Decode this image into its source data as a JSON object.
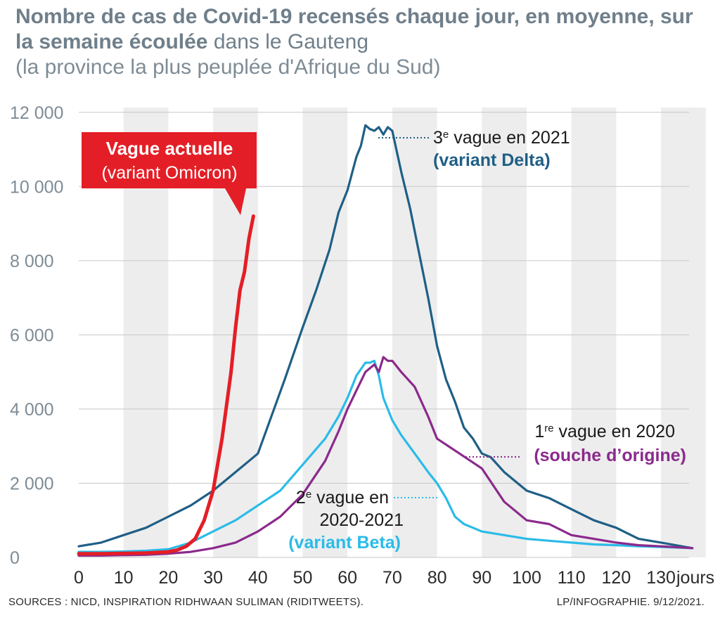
{
  "title": {
    "bold": "Nombre de cas de Covid-19 recensés chaque jour, en moyenne, sur la semaine écoulée",
    "rest": "dans le Gauteng",
    "subtitle": "(la province la plus peuplée d'Afrique du Sud)"
  },
  "footer": {
    "sources": "SOURCES : NICD, INSPIRATION RIDHWAAN SULIMAN (RIDITWEETS).",
    "credit": "LP/INFOGRAPHIE.  9/12/2021."
  },
  "colors": {
    "omicron": "#e41e26",
    "delta": "#1f5f86",
    "beta": "#2bbbe8",
    "origin": "#8b2a8c",
    "grid": "#c7c7c7",
    "band": "#ededed",
    "axis_text": "#7e8c96"
  },
  "annotations": {
    "omicron_line1": "Vague actuelle",
    "omicron_line2": "(variant Omicron)",
    "delta_ord": "3",
    "delta_sup": "e",
    "delta_line1": " vague en 2021",
    "delta_line2": "(variant Delta)",
    "origin_ord": "1",
    "origin_sup": "re",
    "origin_line1": " vague en 2020",
    "origin_line2": "(souche d’origine)",
    "beta_ord": "2",
    "beta_sup": "e",
    "beta_line1": " vague en",
    "beta_line2": "2020-2021",
    "beta_line3": "(variant Beta)"
  },
  "chart_data": {
    "type": "line",
    "x_unit": "jours",
    "xlim": [
      0,
      137
    ],
    "ylim": [
      0,
      12000
    ],
    "x_ticks": [
      0,
      10,
      20,
      30,
      40,
      50,
      60,
      70,
      80,
      90,
      100,
      110,
      120,
      130
    ],
    "x_tick_labels": [
      "0",
      "10",
      "20",
      "30",
      "40",
      "50",
      "60",
      "70",
      "80",
      "90",
      "100",
      "110",
      "120",
      "130"
    ],
    "x_last_label": "jours",
    "y_ticks": [
      0,
      2000,
      4000,
      6000,
      8000,
      10000,
      12000
    ],
    "y_tick_labels": [
      "0",
      "2 000",
      "4 000",
      "6 000",
      "8 000",
      "10 000",
      "12 000"
    ],
    "grid": "horizontal",
    "series": [
      {
        "name": "Vague actuelle (variant Omicron)",
        "x": [
          0,
          5,
          10,
          15,
          20,
          22,
          24,
          26,
          28,
          30,
          32,
          34,
          35,
          36,
          37,
          38,
          39
        ],
        "y": [
          100,
          100,
          110,
          120,
          150,
          200,
          300,
          500,
          1000,
          1800,
          3200,
          5000,
          6200,
          7200,
          7700,
          8600,
          9200
        ]
      },
      {
        "name": "3e vague en 2021 (variant Delta)",
        "x": [
          0,
          5,
          10,
          15,
          20,
          25,
          30,
          35,
          38,
          40,
          43,
          46,
          50,
          53,
          56,
          58,
          60,
          62,
          63,
          64,
          65,
          66,
          67,
          68,
          69,
          70,
          72,
          74,
          76,
          78,
          80,
          82,
          84,
          86,
          88,
          90,
          92,
          95,
          100,
          105,
          110,
          115,
          120,
          125,
          130,
          137
        ],
        "y": [
          300,
          400,
          600,
          800,
          1100,
          1400,
          1800,
          2300,
          2600,
          2800,
          3800,
          4800,
          6200,
          7200,
          8300,
          9300,
          9900,
          10800,
          11100,
          11650,
          11550,
          11500,
          11600,
          11400,
          11600,
          11500,
          10400,
          9400,
          8200,
          7000,
          5700,
          4800,
          4200,
          3500,
          3200,
          2800,
          2700,
          2300,
          1800,
          1600,
          1300,
          1000,
          800,
          500,
          400,
          250
        ]
      },
      {
        "name": "2e vague en 2020-2021 (variant Beta)",
        "x": [
          0,
          5,
          10,
          15,
          20,
          25,
          30,
          35,
          40,
          45,
          50,
          55,
          58,
          60,
          62,
          64,
          65,
          66,
          67,
          68,
          70,
          72,
          75,
          78,
          80,
          82,
          84,
          86,
          88,
          90,
          95,
          100,
          105,
          110,
          115,
          120,
          125,
          130,
          137
        ],
        "y": [
          150,
          150,
          160,
          180,
          220,
          400,
          700,
          1000,
          1400,
          1800,
          2500,
          3200,
          3800,
          4300,
          4900,
          5250,
          5250,
          5300,
          4900,
          4300,
          3700,
          3300,
          2800,
          2300,
          2000,
          1600,
          1100,
          900,
          800,
          700,
          600,
          500,
          450,
          400,
          350,
          330,
          300,
          280,
          250
        ]
      },
      {
        "name": "1re vague en 2020 (souche d'origine)",
        "x": [
          0,
          5,
          10,
          15,
          20,
          25,
          30,
          35,
          40,
          45,
          50,
          55,
          58,
          60,
          62,
          64,
          66,
          67,
          68,
          69,
          70,
          72,
          75,
          78,
          80,
          85,
          90,
          95,
          100,
          105,
          110,
          115,
          120,
          125,
          130,
          137
        ],
        "y": [
          50,
          50,
          60,
          70,
          100,
          150,
          250,
          400,
          700,
          1100,
          1700,
          2600,
          3400,
          4000,
          4500,
          5000,
          5200,
          5000,
          5400,
          5300,
          5300,
          5000,
          4600,
          3800,
          3200,
          2800,
          2400,
          1500,
          1000,
          900,
          600,
          500,
          400,
          330,
          300,
          250
        ]
      }
    ]
  }
}
